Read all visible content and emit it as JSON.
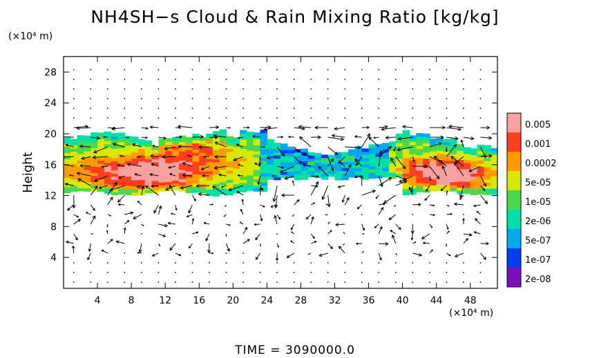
{
  "title": "NH4SH−s Cloud & Rain Mixing Ratio [kg/kg]",
  "footer": "TIME  =  3090000.0",
  "chart_data": {
    "type": "heatmap",
    "title": "NH4SH−s Cloud & Rain Mixing Ratio [kg/kg]",
    "ylabel": "Height",
    "yunit": "(×10⁴ m)",
    "xunit": "(×10⁴ m)",
    "xlim": [
      0,
      51.2
    ],
    "ylim": [
      0,
      30
    ],
    "xticks": [
      4,
      8,
      12,
      16,
      20,
      24,
      28,
      32,
      36,
      40,
      44,
      48
    ],
    "yticks": [
      4,
      8,
      12,
      16,
      20,
      24,
      28
    ],
    "colorbar": {
      "labels": [
        "0.005",
        "0.001",
        "0.0002",
        "5e-05",
        "1e-05",
        "2e-06",
        "5e-07",
        "1e-07",
        "2e-08"
      ],
      "colors": [
        "#f7a0a0",
        "#ff3d1f",
        "#ff9a00",
        "#d8e800",
        "#4cd84c",
        "#00e0a8",
        "#00a8f0",
        "#0040f0",
        "#7a10b8"
      ]
    },
    "cloud_layer": {
      "bottom_km_range": [
        12,
        14
      ],
      "top_km_range": [
        18,
        21
      ]
    },
    "overlay": "wind vectors"
  }
}
